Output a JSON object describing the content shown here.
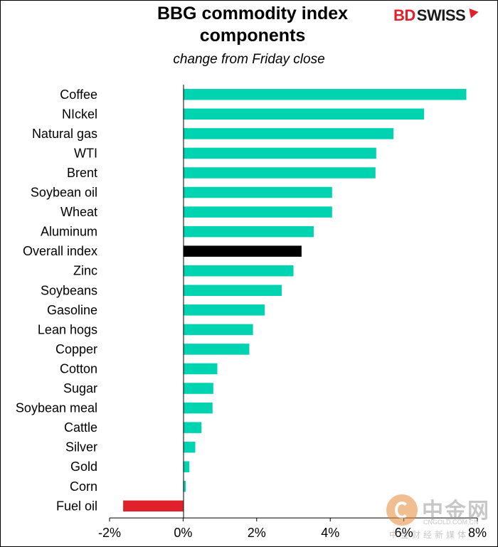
{
  "header": {
    "title_line1": "BBG commodity index",
    "title_line2": "components",
    "subtitle": "change from Friday close"
  },
  "logo": {
    "part1": "BD",
    "part2": "SWISS"
  },
  "watermark": {
    "main": "中金网",
    "url": "CNGOLD.COM.CN",
    "tagline": "中金财经新媒体"
  },
  "colors": {
    "default_bar": "#00d3b0",
    "highlight_bar": "#000000",
    "negative_bar": "#e0202a"
  },
  "chart_data": {
    "type": "bar",
    "orientation": "horizontal",
    "title": "BBG commodity index components",
    "subtitle": "change from Friday close",
    "categories": [
      "Coffee",
      "NIckel",
      "Natural gas",
      "WTI",
      "Brent",
      "Soybean oil",
      "Wheat",
      "Aluminum",
      "Overall index",
      "Zinc",
      "Soybeans",
      "Gasoline",
      "Lean hogs",
      "Copper",
      "Cotton",
      "Sugar",
      "Soybean meal",
      "Cattle",
      "Silver",
      "Gold",
      "Corn",
      "Fuel oil"
    ],
    "values": [
      7.7,
      6.55,
      5.72,
      5.25,
      5.23,
      4.05,
      4.05,
      3.55,
      3.22,
      3.0,
      2.68,
      2.22,
      1.9,
      1.8,
      0.93,
      0.82,
      0.8,
      0.5,
      0.33,
      0.17,
      0.07,
      -1.63
    ],
    "highlight": [
      "Overall index"
    ],
    "x_ticks": [
      "-2%",
      "0%",
      "2%",
      "4%",
      "6%",
      "8%"
    ],
    "x_tick_values": [
      -2,
      0,
      2,
      4,
      6,
      8
    ],
    "xlim": [
      -2,
      8
    ],
    "grid": false,
    "legend": false
  }
}
